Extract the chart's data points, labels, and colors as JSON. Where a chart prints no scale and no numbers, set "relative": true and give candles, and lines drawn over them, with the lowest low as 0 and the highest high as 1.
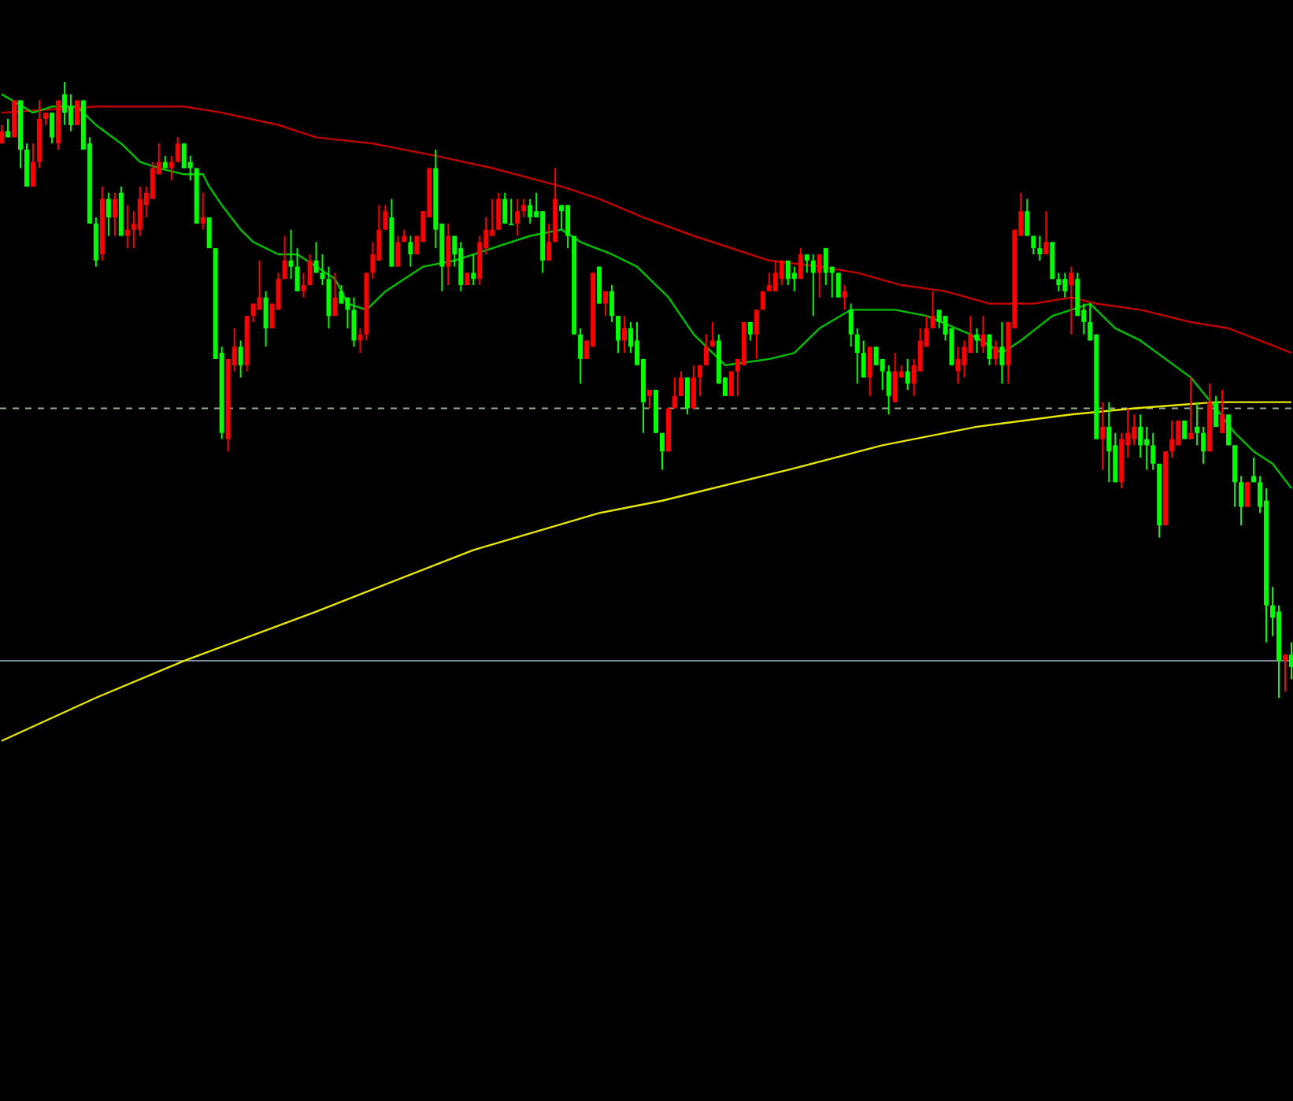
{
  "chart_data": {
    "type": "candlestick",
    "relative": true,
    "categories": [
      null,
      null,
      null,
      null,
      null,
      null,
      null,
      null,
      null,
      null,
      null,
      null,
      null,
      null,
      null,
      null,
      null,
      null,
      null,
      null,
      null,
      null,
      null,
      null,
      null,
      null,
      null,
      null,
      null,
      null,
      null,
      null,
      null,
      null,
      null,
      null,
      null,
      null,
      null,
      null,
      null,
      null,
      null,
      null,
      null,
      null,
      null,
      null,
      null,
      null,
      null,
      null,
      null,
      null,
      null,
      null,
      null,
      null,
      null,
      null,
      null,
      null,
      null,
      null,
      null,
      null,
      null,
      null,
      null,
      null,
      null,
      null,
      null,
      null,
      null,
      null,
      null,
      null,
      null,
      null,
      null,
      null,
      null,
      null,
      null,
      null,
      null,
      null,
      null,
      null,
      null,
      null,
      null,
      null,
      null,
      null,
      null,
      null,
      null,
      null,
      null,
      null,
      null,
      null,
      null,
      null,
      null,
      null,
      null,
      null,
      null,
      null,
      null,
      null,
      null,
      null,
      null,
      null,
      null,
      null,
      null,
      null,
      null,
      null,
      null,
      null,
      null,
      null,
      null,
      null,
      null,
      null,
      null,
      null,
      null,
      null,
      null,
      null,
      null,
      null,
      null,
      null,
      null,
      null,
      null,
      null,
      null,
      null,
      null,
      null,
      null,
      null,
      null,
      null,
      null,
      null,
      null,
      null,
      null,
      null,
      null,
      null,
      null,
      null,
      null,
      null,
      null,
      null,
      null,
      null,
      null,
      null,
      null,
      null,
      null,
      null,
      null,
      null,
      null,
      null,
      null,
      null,
      null,
      null,
      null,
      null,
      null,
      null,
      null,
      null,
      null,
      null,
      null,
      null,
      null,
      null,
      null,
      null,
      null,
      null,
      null,
      null,
      null,
      null,
      null,
      null
    ],
    "ohlc": [
      [
        0.9,
        0.93,
        0.9,
        0.92
      ],
      [
        0.92,
        0.94,
        0.91,
        0.91
      ],
      [
        0.91,
        0.97,
        0.91,
        0.97
      ],
      [
        0.97,
        0.97,
        0.86,
        0.89
      ],
      [
        0.89,
        0.9,
        0.83,
        0.83
      ],
      [
        0.83,
        0.9,
        0.83,
        0.87
      ],
      [
        0.87,
        0.97,
        0.86,
        0.94
      ],
      [
        0.94,
        0.95,
        0.93,
        0.95
      ],
      [
        0.95,
        0.95,
        0.9,
        0.91
      ],
      [
        0.9,
        0.97,
        0.89,
        0.97
      ],
      [
        0.98,
        1,
        0.93,
        0.95
      ],
      [
        0.96,
        0.98,
        0.92,
        0.93
      ],
      [
        0.93,
        0.97,
        0.93,
        0.97
      ],
      [
        0.97,
        0.97,
        0.89,
        0.89
      ],
      [
        0.9,
        0.91,
        0.77,
        0.77
      ],
      [
        0.77,
        0.78,
        0.7,
        0.71
      ],
      [
        0.72,
        0.83,
        0.71,
        0.81
      ],
      [
        0.81,
        0.82,
        0.75,
        0.78
      ],
      [
        0.78,
        0.82,
        0.75,
        0.81
      ],
      [
        0.82,
        0.83,
        0.75,
        0.75
      ],
      [
        0.75,
        0.8,
        0.73,
        0.76
      ],
      [
        0.76,
        0.79,
        0.73,
        0.77
      ],
      [
        0.76,
        0.83,
        0.75,
        0.81
      ],
      [
        0.8,
        0.83,
        0.78,
        0.82
      ],
      [
        0.81,
        0.87,
        0.81,
        0.86
      ],
      [
        0.85,
        0.9,
        0.85,
        0.87
      ],
      [
        0.87,
        0.88,
        0.86,
        0.86
      ],
      [
        0.86,
        0.88,
        0.84,
        0.87
      ],
      [
        0.87,
        0.91,
        0.87,
        0.9
      ],
      [
        0.9,
        0.9,
        0.86,
        0.86
      ],
      [
        0.87,
        0.88,
        0.84,
        0.86
      ],
      [
        0.86,
        0.86,
        0.77,
        0.77
      ],
      [
        0.77,
        0.82,
        0.76,
        0.78
      ],
      [
        0.78,
        0.78,
        0.73,
        0.73
      ],
      [
        0.73,
        0.73,
        0.55,
        0.55
      ],
      [
        0.56,
        0.57,
        0.42,
        0.43
      ],
      [
        0.42,
        0.55,
        0.4,
        0.55
      ],
      [
        0.54,
        0.6,
        0.53,
        0.57
      ],
      [
        0.57,
        0.58,
        0.52,
        0.54
      ],
      [
        0.54,
        0.62,
        0.53,
        0.62
      ],
      [
        0.62,
        0.64,
        0.61,
        0.64
      ],
      [
        0.63,
        0.71,
        0.63,
        0.65
      ],
      [
        0.65,
        0.66,
        0.57,
        0.6
      ],
      [
        0.6,
        0.64,
        0.6,
        0.64
      ],
      [
        0.63,
        0.69,
        0.63,
        0.68
      ],
      [
        0.68,
        0.75,
        0.68,
        0.71
      ],
      [
        0.71,
        0.76,
        0.68,
        0.7
      ],
      [
        0.7,
        0.73,
        0.66,
        0.66
      ],
      [
        0.66,
        0.69,
        0.65,
        0.67
      ],
      [
        0.67,
        0.72,
        0.67,
        0.71
      ],
      [
        0.71,
        0.74,
        0.69,
        0.69
      ],
      [
        0.69,
        0.72,
        0.67,
        0.68
      ],
      [
        0.68,
        0.7,
        0.6,
        0.62
      ],
      [
        0.62,
        0.69,
        0.62,
        0.65
      ],
      [
        0.66,
        0.67,
        0.64,
        0.64
      ],
      [
        0.65,
        0.65,
        0.6,
        0.63
      ],
      [
        0.63,
        0.65,
        0.57,
        0.58
      ],
      [
        0.58,
        0.6,
        0.56,
        0.59
      ],
      [
        0.59,
        0.69,
        0.58,
        0.69
      ],
      [
        0.69,
        0.74,
        0.68,
        0.72
      ],
      [
        0.71,
        0.8,
        0.71,
        0.76
      ],
      [
        0.76,
        0.8,
        0.76,
        0.79
      ],
      [
        0.78,
        0.81,
        0.7,
        0.7
      ],
      [
        0.7,
        0.75,
        0.7,
        0.74
      ],
      [
        0.74,
        0.76,
        0.74,
        0.75
      ],
      [
        0.74,
        0.75,
        0.7,
        0.72
      ],
      [
        0.72,
        0.75,
        0.72,
        0.75
      ],
      [
        0.74,
        0.79,
        0.74,
        0.79
      ],
      [
        0.78,
        0.86,
        0.78,
        0.86
      ],
      [
        0.86,
        0.89,
        0.73,
        0.76
      ],
      [
        0.77,
        0.77,
        0.66,
        0.7
      ],
      [
        0.7,
        0.77,
        0.67,
        0.75
      ],
      [
        0.75,
        0.75,
        0.7,
        0.72
      ],
      [
        0.73,
        0.74,
        0.66,
        0.67
      ],
      [
        0.67,
        0.69,
        0.67,
        0.69
      ],
      [
        0.69,
        0.72,
        0.67,
        0.68
      ],
      [
        0.68,
        0.75,
        0.67,
        0.74
      ],
      [
        0.73,
        0.78,
        0.72,
        0.76
      ],
      [
        0.75,
        0.81,
        0.75,
        0.76
      ],
      [
        0.76,
        0.82,
        0.76,
        0.81
      ],
      [
        0.81,
        0.82,
        0.77,
        0.77
      ],
      [
        0.77,
        0.81,
        0.77,
        0.77
      ],
      [
        0.77,
        0.81,
        0.75,
        0.79
      ],
      [
        0.79,
        0.81,
        0.78,
        0.8
      ],
      [
        0.8,
        0.81,
        0.77,
        0.78
      ],
      [
        0.79,
        0.82,
        0.78,
        0.78
      ],
      [
        0.79,
        0.79,
        0.69,
        0.71
      ],
      [
        0.71,
        0.77,
        0.71,
        0.74
      ],
      [
        0.74,
        0.86,
        0.74,
        0.81
      ],
      [
        0.8,
        0.8,
        0.76,
        0.79
      ],
      [
        0.8,
        0.8,
        0.73,
        0.75
      ],
      [
        0.75,
        0.75,
        0.59,
        0.59
      ],
      [
        0.59,
        0.6,
        0.51,
        0.55
      ],
      [
        0.55,
        0.58,
        0.55,
        0.58
      ],
      [
        0.57,
        0.69,
        0.57,
        0.69
      ],
      [
        0.7,
        0.7,
        0.64,
        0.64
      ],
      [
        0.64,
        0.66,
        0.62,
        0.66
      ],
      [
        0.66,
        0.67,
        0.61,
        0.62
      ],
      [
        0.62,
        0.62,
        0.56,
        0.58
      ],
      [
        0.58,
        0.62,
        0.56,
        0.6
      ],
      [
        0.6,
        0.61,
        0.56,
        0.57
      ],
      [
        0.58,
        0.61,
        0.54,
        0.54
      ],
      [
        0.55,
        0.55,
        0.43,
        0.48
      ],
      [
        0.49,
        0.5,
        0.47,
        0.5
      ],
      [
        0.5,
        0.5,
        0.43,
        0.43
      ],
      [
        0.43,
        0.43,
        0.37,
        0.4
      ],
      [
        0.4,
        0.47,
        0.4,
        0.47
      ],
      [
        0.47,
        0.52,
        0.47,
        0.49
      ],
      [
        0.49,
        0.53,
        0.49,
        0.52
      ],
      [
        0.52,
        0.52,
        0.46,
        0.47
      ],
      [
        0.47,
        0.54,
        0.47,
        0.52
      ],
      [
        0.52,
        0.54,
        0.49,
        0.54
      ],
      [
        0.54,
        0.59,
        0.54,
        0.57
      ],
      [
        0.57,
        0.61,
        0.57,
        0.58
      ],
      [
        0.58,
        0.59,
        0.51,
        0.51
      ],
      [
        0.52,
        0.52,
        0.49,
        0.49
      ],
      [
        0.49,
        0.53,
        0.49,
        0.53
      ],
      [
        0.53,
        0.55,
        0.49,
        0.55
      ],
      [
        0.54,
        0.61,
        0.54,
        0.61
      ],
      [
        0.61,
        0.61,
        0.58,
        0.59
      ],
      [
        0.59,
        0.63,
        0.55,
        0.63
      ],
      [
        0.63,
        0.66,
        0.63,
        0.66
      ],
      [
        0.66,
        0.69,
        0.66,
        0.67
      ],
      [
        0.66,
        0.71,
        0.66,
        0.69
      ],
      [
        0.68,
        0.71,
        0.67,
        0.71
      ],
      [
        0.71,
        0.71,
        0.67,
        0.68
      ],
      [
        0.69,
        0.7,
        0.66,
        0.68
      ],
      [
        0.68,
        0.73,
        0.68,
        0.72
      ],
      [
        0.72,
        0.72,
        0.69,
        0.71
      ],
      [
        0.71,
        0.72,
        0.62,
        0.69
      ],
      [
        0.69,
        0.72,
        0.65,
        0.72
      ],
      [
        0.73,
        0.73,
        0.67,
        0.69
      ],
      [
        0.7,
        0.7,
        0.65,
        0.69
      ],
      [
        0.69,
        0.69,
        0.65,
        0.65
      ],
      [
        0.65,
        0.67,
        0.63,
        0.66
      ],
      [
        0.63,
        0.64,
        0.57,
        0.59
      ],
      [
        0.59,
        0.6,
        0.51,
        0.56
      ],
      [
        0.56,
        0.58,
        0.52,
        0.52
      ],
      [
        0.52,
        0.57,
        0.49,
        0.57
      ],
      [
        0.57,
        0.57,
        0.54,
        0.54
      ],
      [
        0.55,
        0.55,
        0.5,
        0.53
      ],
      [
        0.53,
        0.54,
        0.46,
        0.49
      ],
      [
        0.48,
        0.56,
        0.48,
        0.53
      ],
      [
        0.52,
        0.54,
        0.52,
        0.53
      ],
      [
        0.53,
        0.55,
        0.5,
        0.51
      ],
      [
        0.51,
        0.55,
        0.49,
        0.54
      ],
      [
        0.53,
        0.6,
        0.53,
        0.58
      ],
      [
        0.57,
        0.62,
        0.57,
        0.6
      ],
      [
        0.6,
        0.66,
        0.6,
        0.62
      ],
      [
        0.63,
        0.63,
        0.6,
        0.61
      ],
      [
        0.62,
        0.62,
        0.58,
        0.59
      ],
      [
        0.6,
        0.6,
        0.54,
        0.54
      ],
      [
        0.53,
        0.57,
        0.51,
        0.55
      ],
      [
        0.54,
        0.58,
        0.52,
        0.57
      ],
      [
        0.56,
        0.62,
        0.56,
        0.59
      ],
      [
        0.59,
        0.6,
        0.56,
        0.58
      ],
      [
        0.57,
        0.62,
        0.56,
        0.59
      ],
      [
        0.59,
        0.59,
        0.54,
        0.55
      ],
      [
        0.55,
        0.58,
        0.54,
        0.57
      ],
      [
        0.57,
        0.61,
        0.51,
        0.54
      ],
      [
        0.54,
        0.61,
        0.51,
        0.61
      ],
      [
        0.6,
        0.76,
        0.6,
        0.76
      ],
      [
        0.75,
        0.82,
        0.75,
        0.79
      ],
      [
        0.79,
        0.81,
        0.75,
        0.75
      ],
      [
        0.75,
        0.75,
        0.72,
        0.73
      ],
      [
        0.73,
        0.75,
        0.71,
        0.72
      ],
      [
        0.72,
        0.79,
        0.72,
        0.74
      ],
      [
        0.74,
        0.74,
        0.68,
        0.68
      ],
      [
        0.68,
        0.69,
        0.66,
        0.67
      ],
      [
        0.68,
        0.69,
        0.65,
        0.66
      ],
      [
        0.67,
        0.7,
        0.59,
        0.69
      ],
      [
        0.68,
        0.69,
        0.62,
        0.62
      ],
      [
        0.63,
        0.64,
        0.59,
        0.61
      ],
      [
        0.61,
        0.64,
        0.58,
        0.58
      ],
      [
        0.59,
        0.59,
        0.42,
        0.42
      ],
      [
        0.42,
        0.48,
        0.37,
        0.44
      ],
      [
        0.44,
        0.48,
        0.35,
        0.4
      ],
      [
        0.41,
        0.43,
        0.35,
        0.35
      ],
      [
        0.35,
        0.43,
        0.34,
        0.42
      ],
      [
        0.41,
        0.47,
        0.39,
        0.43
      ],
      [
        0.42,
        0.46,
        0.41,
        0.44
      ],
      [
        0.44,
        0.46,
        0.39,
        0.41
      ],
      [
        0.42,
        0.44,
        0.37,
        0.41
      ],
      [
        0.41,
        0.43,
        0.37,
        0.38
      ],
      [
        0.38,
        0.38,
        0.26,
        0.28
      ],
      [
        0.28,
        0.4,
        0.28,
        0.4
      ],
      [
        0.4,
        0.45,
        0.39,
        0.42
      ],
      [
        0.41,
        0.45,
        0.41,
        0.45
      ],
      [
        0.45,
        0.45,
        0.42,
        0.42
      ],
      [
        0.42,
        0.52,
        0.42,
        0.43
      ],
      [
        0.44,
        0.48,
        0.41,
        0.43
      ],
      [
        0.43,
        0.44,
        0.38,
        0.4
      ],
      [
        0.4,
        0.51,
        0.4,
        0.48
      ],
      [
        0.48,
        0.49,
        0.44,
        0.44
      ],
      [
        0.43,
        0.5,
        0.43,
        0.46
      ],
      [
        0.46,
        0.46,
        0.41,
        0.41
      ],
      [
        0.41,
        0.41,
        0.31,
        0.35
      ],
      [
        0.35,
        0.36,
        0.28,
        0.31
      ],
      [
        0.31,
        0.35,
        0.31,
        0.35
      ],
      [
        0.36,
        0.39,
        0.35,
        0.35
      ],
      [
        0.35,
        0.36,
        0.3,
        0.31
      ],
      [
        0.32,
        0.34,
        0.09,
        0.15
      ],
      [
        0.15,
        0.18,
        0.1,
        0.13
      ],
      [
        0.14,
        0.15,
        0,
        0.06
      ],
      [
        0.06,
        0.07,
        0.01,
        0.07
      ],
      [
        0.07,
        0.09,
        0.03,
        0.05
      ]
    ],
    "colors": [
      "#ff0000",
      "#00ff00",
      "#ff0000",
      "#00ff00",
      "#00ff00",
      "#ff0000",
      "#ff0000",
      "#ff0000",
      "#00ff00",
      "#ff0000",
      "#00ff00",
      "#00ff00",
      "#ff0000",
      "#00ff00",
      "#00ff00",
      "#00ff00",
      "#ff0000",
      "#00ff00",
      "#ff0000",
      "#00ff00",
      "#ff0000",
      "#ff0000",
      "#ff0000",
      "#ff0000",
      "#ff0000",
      "#ff0000",
      "#00ff00",
      "#ff0000",
      "#ff0000",
      "#00ff00",
      "#00ff00",
      "#00ff00",
      "#ff0000",
      "#00ff00",
      "#00ff00",
      "#00ff00",
      "#ff0000",
      "#ff0000",
      "#00ff00",
      "#ff0000",
      "#ff0000",
      "#ff0000",
      "#00ff00",
      "#ff0000",
      "#ff0000",
      "#ff0000",
      "#00ff00",
      "#00ff00",
      "#ff0000",
      "#ff0000",
      "#00ff00",
      "#00ff00",
      "#00ff00",
      "#ff0000",
      "#00ff00",
      "#00ff00",
      "#00ff00",
      "#ff0000",
      "#ff0000",
      "#ff0000",
      "#ff0000",
      "#ff0000",
      "#00ff00",
      "#ff0000",
      "#ff0000",
      "#00ff00",
      "#ff0000",
      "#ff0000",
      "#ff0000",
      "#00ff00",
      "#00ff00",
      "#ff0000",
      "#00ff00",
      "#00ff00",
      "#ff0000",
      "#00ff00",
      "#ff0000",
      "#ff0000",
      "#ff0000",
      "#ff0000",
      "#00ff00",
      "#00ff00",
      "#ff0000",
      "#ff0000",
      "#00ff00",
      "#00ff00",
      "#00ff00",
      "#ff0000",
      "#ff0000",
      "#00ff00",
      "#00ff00",
      "#00ff00",
      "#00ff00",
      "#ff0000",
      "#ff0000",
      "#00ff00",
      "#ff0000",
      "#00ff00",
      "#00ff00",
      "#ff0000",
      "#00ff00",
      "#00ff00",
      "#00ff00",
      "#ff0000",
      "#00ff00",
      "#00ff00",
      "#ff0000",
      "#ff0000",
      "#ff0000",
      "#00ff00",
      "#ff0000",
      "#ff0000",
      "#ff0000",
      "#ff0000",
      "#00ff00",
      "#00ff00",
      "#ff0000",
      "#ff0000",
      "#ff0000",
      "#00ff00",
      "#ff0000",
      "#ff0000",
      "#ff0000",
      "#ff0000",
      "#ff0000",
      "#00ff00",
      "#00ff00",
      "#ff0000",
      "#00ff00",
      "#00ff00",
      "#ff0000",
      "#00ff00",
      "#00ff00",
      "#00ff00",
      "#ff0000",
      "#00ff00",
      "#00ff00",
      "#00ff00",
      "#ff0000",
      "#00ff00",
      "#00ff00",
      "#00ff00",
      "#ff0000",
      "#ff0000",
      "#00ff00",
      "#ff0000",
      "#ff0000",
      "#ff0000",
      "#ff0000",
      "#00ff00",
      "#00ff00",
      "#00ff00",
      "#ff0000",
      "#ff0000",
      "#ff0000",
      "#00ff00",
      "#ff0000",
      "#00ff00",
      "#ff0000",
      "#00ff00",
      "#ff0000",
      "#ff0000",
      "#ff0000",
      "#00ff00",
      "#00ff00",
      "#00ff00",
      "#ff0000",
      "#00ff00",
      "#00ff00",
      "#00ff00",
      "#ff0000",
      "#00ff00",
      "#00ff00",
      "#00ff00",
      "#00ff00",
      "#ff0000",
      "#00ff00",
      "#00ff00",
      "#ff0000",
      "#ff0000",
      "#ff0000",
      "#00ff00",
      "#00ff00",
      "#00ff00",
      "#00ff00",
      "#ff0000",
      "#ff0000",
      "#ff0000",
      "#00ff00",
      "#ff0000",
      "#00ff00",
      "#00ff00",
      "#ff0000",
      "#00ff00",
      "#ff0000",
      "#00ff00",
      "#00ff00",
      "#00ff00",
      "#ff0000",
      "#00ff00",
      "#00ff00",
      "#00ff00",
      "#00ff00",
      "#00ff00",
      "#ff0000",
      "#00ff00"
    ],
    "series": [
      {
        "type": "line",
        "color": "#c00000",
        "values": [
          0.95,
          null,
          null,
          null,
          null,
          null,
          null,
          null,
          null,
          null,
          null,
          null,
          null,
          null,
          null,
          0.96,
          null,
          null,
          null,
          null,
          null,
          null,
          null,
          null,
          null,
          null,
          null,
          null,
          null,
          0.96,
          null,
          null,
          null,
          null,
          null,
          0.95,
          null,
          null,
          null,
          null,
          null,
          null,
          null,
          null,
          0.93,
          null,
          null,
          null,
          null,
          null,
          0.91,
          null,
          null,
          null,
          null,
          null,
          null,
          null,
          null,
          0.9,
          null,
          null,
          null,
          null,
          null,
          null,
          null,
          null,
          null,
          0.88,
          null,
          null,
          null,
          null,
          null,
          null,
          null,
          null,
          0.86,
          null,
          null,
          null,
          null,
          null,
          null,
          null,
          null,
          null,
          null,
          0.83,
          null,
          null,
          null,
          null,
          null,
          0.81,
          null,
          null,
          null,
          null,
          null,
          null,
          0.78,
          null,
          null,
          null,
          null,
          null,
          null,
          null,
          0.75,
          null,
          null,
          null,
          null,
          null,
          null,
          null,
          null,
          null,
          null,
          null,
          0.71,
          null,
          null,
          null,
          null,
          null,
          null,
          null,
          0.7,
          null,
          null,
          null,
          null,
          null,
          0.69,
          null,
          null,
          null,
          null,
          null,
          null,
          0.67,
          null,
          null,
          null,
          null,
          null,
          null,
          0.66,
          null,
          null,
          null,
          null,
          null,
          null,
          0.64,
          null,
          null,
          0.64,
          null,
          null,
          null,
          0.64,
          null,
          null,
          null,
          null,
          null,
          0.65,
          null,
          null,
          null,
          0.64,
          null,
          null,
          null,
          null,
          null,
          null,
          0.63,
          null,
          null,
          null,
          null,
          null,
          null,
          null,
          0.61,
          null,
          null,
          null,
          null,
          null,
          0.6,
          null,
          null,
          null,
          null,
          0.58,
          null,
          null,
          null,
          null,
          0.56
        ]
      },
      {
        "type": "line",
        "color": "#00c000",
        "values": [
          0.98,
          null,
          null,
          null,
          null,
          0.95,
          null,
          null,
          0.96,
          null,
          null,
          null,
          0.96,
          null,
          null,
          0.93,
          null,
          null,
          null,
          0.9,
          null,
          null,
          0.87,
          null,
          null,
          0.86,
          null,
          null,
          null,
          0.85,
          null,
          null,
          0.85,
          0.83,
          null,
          0.8,
          null,
          null,
          0.76,
          null,
          0.74,
          null,
          null,
          null,
          0.72,
          null,
          null,
          0.72,
          null,
          null,
          0.7,
          null,
          null,
          0.68,
          null,
          0.64,
          null,
          null,
          0.63,
          null,
          null,
          0.66,
          null,
          null,
          0.68,
          null,
          null,
          0.7,
          null,
          null,
          null,
          null,
          0.71,
          null,
          null,
          null,
          null,
          null,
          0.73,
          null,
          null,
          null,
          null,
          null,
          0.75,
          null,
          null,
          null,
          null,
          0.76,
          null,
          null,
          0.74,
          null,
          null,
          null,
          null,
          0.72,
          null,
          null,
          null,
          0.7,
          null,
          null,
          null,
          null,
          0.65,
          null,
          null,
          null,
          0.59,
          null,
          null,
          null,
          null,
          0.54,
          null,
          null,
          null,
          null,
          null,
          null,
          0.55,
          null,
          null,
          null,
          0.56,
          null,
          null,
          null,
          0.6,
          null,
          null,
          null,
          null,
          0.63,
          null,
          null,
          null,
          null,
          null,
          null,
          0.63,
          null,
          null,
          null,
          null,
          0.62,
          null,
          null,
          null,
          null,
          null,
          null,
          0.59,
          null,
          null,
          null,
          null,
          0.56,
          null,
          null,
          0.58,
          null,
          null,
          null,
          null,
          0.62,
          null,
          null,
          0.63,
          null,
          null,
          0.64,
          null,
          null,
          null,
          0.6,
          null,
          null,
          null,
          0.58,
          null,
          null,
          null,
          0.55,
          null,
          null,
          null,
          0.52,
          null,
          null,
          null,
          0.47,
          null,
          null,
          0.43,
          null,
          null,
          0.4,
          null,
          null,
          0.38,
          null,
          null,
          0.34
        ]
      },
      {
        "type": "line",
        "color": "#e6e600",
        "values": [
          -0.07,
          null,
          null,
          null,
          null,
          null,
          null,
          null,
          null,
          null,
          null,
          null,
          null,
          null,
          null,
          0,
          null,
          null,
          null,
          null,
          null,
          null,
          null,
          null,
          null,
          null,
          null,
          null,
          null,
          0.06,
          null,
          null,
          null,
          null,
          null,
          null,
          null,
          null,
          null,
          null,
          null,
          null,
          null,
          null,
          null,
          null,
          null,
          null,
          null,
          null,
          0.14,
          null,
          null,
          null,
          null,
          null,
          null,
          null,
          null,
          null,
          null,
          null,
          null,
          null,
          null,
          null,
          null,
          null,
          null,
          null,
          null,
          null,
          null,
          null,
          null,
          0.24,
          null,
          null,
          null,
          null,
          null,
          null,
          null,
          null,
          null,
          null,
          null,
          null,
          null,
          null,
          null,
          null,
          null,
          null,
          null,
          0.3,
          null,
          null,
          null,
          null,
          null,
          null,
          null,
          null,
          null,
          0.32,
          null,
          null,
          null,
          null,
          null,
          null,
          null,
          null,
          null,
          null,
          null,
          null,
          null,
          null,
          null,
          null,
          null,
          null,
          null,
          0.37,
          null,
          null,
          null,
          null,
          null,
          null,
          null,
          null,
          null,
          null,
          null,
          null,
          null,
          null,
          0.41,
          null,
          null,
          null,
          null,
          null,
          null,
          null,
          null,
          null,
          null,
          null,
          null,
          null,
          null,
          0.44,
          null,
          null,
          null,
          null,
          null,
          null,
          null,
          null,
          null,
          null,
          null,
          null,
          null,
          null,
          0.46,
          null,
          null,
          null,
          null,
          null,
          null,
          null,
          null,
          null,
          0.47,
          null,
          null,
          null,
          null,
          null,
          null,
          null,
          null,
          null,
          null,
          null,
          null,
          0.48,
          null,
          null,
          null,
          null,
          null,
          null,
          null,
          null,
          null,
          null,
          null,
          0.48
        ]
      }
    ],
    "ref_lines": [
      {
        "axis": "y",
        "value": 0.47,
        "color": "#8fae8f",
        "line_style": "dashed"
      },
      {
        "axis": "y",
        "value": 0.06,
        "color": "#7b8aa0",
        "line_style": "solid"
      }
    ]
  }
}
